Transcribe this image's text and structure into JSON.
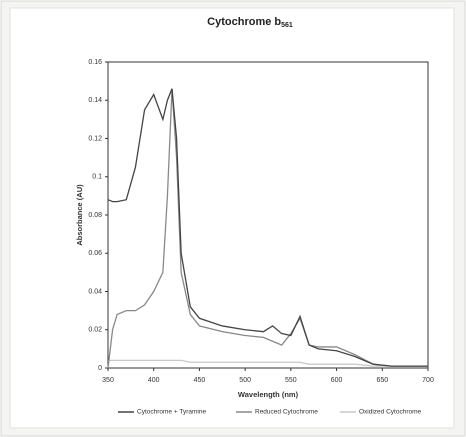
{
  "chart_data": {
    "type": "line",
    "title": "Cytochrome b",
    "title_subscript": "561",
    "x_label": "Wavelength (nm)",
    "y_label": "Absorbance (AU)",
    "x": [
      350,
      355,
      360,
      370,
      380,
      390,
      400,
      410,
      415,
      420,
      425,
      430,
      440,
      450,
      475,
      500,
      520,
      530,
      540,
      550,
      560,
      570,
      580,
      600,
      620,
      640,
      660,
      700
    ],
    "series": [
      {
        "name": "Cytochrome + Tyramine",
        "color": "#444444",
        "values": [
          0.088,
          0.087,
          0.087,
          0.088,
          0.105,
          0.135,
          0.143,
          0.13,
          0.14,
          0.146,
          0.12,
          0.06,
          0.032,
          0.026,
          0.022,
          0.02,
          0.019,
          0.022,
          0.018,
          0.017,
          0.027,
          0.012,
          0.01,
          0.009,
          0.006,
          0.002,
          0.001,
          0.001
        ]
      },
      {
        "name": "Reduced Cytochrome",
        "color": "#888888",
        "values": [
          0.0,
          0.02,
          0.028,
          0.03,
          0.03,
          0.033,
          0.04,
          0.05,
          0.09,
          0.146,
          0.11,
          0.05,
          0.028,
          0.022,
          0.019,
          0.017,
          0.016,
          0.014,
          0.012,
          0.018,
          0.026,
          0.012,
          0.011,
          0.011,
          0.007,
          0.002,
          0.001,
          0.001
        ]
      },
      {
        "name": "Oxidized Cytochrome",
        "color": "#c8c8c8",
        "values": [
          0.004,
          0.004,
          0.004,
          0.004,
          0.004,
          0.004,
          0.004,
          0.004,
          0.004,
          0.004,
          0.004,
          0.004,
          0.003,
          0.003,
          0.003,
          0.003,
          0.003,
          0.003,
          0.003,
          0.003,
          0.003,
          0.002,
          0.002,
          0.002,
          0.002,
          0.001,
          0.001,
          0.001
        ]
      }
    ],
    "xlim": [
      350,
      700
    ],
    "ylim": [
      0,
      0.16
    ],
    "xticks": [
      350,
      400,
      450,
      500,
      550,
      600,
      650,
      700
    ],
    "yticks": [
      0,
      0.02,
      0.04,
      0.06,
      0.08,
      0.1,
      0.12,
      0.14,
      0.16
    ],
    "legend": "bottom"
  }
}
